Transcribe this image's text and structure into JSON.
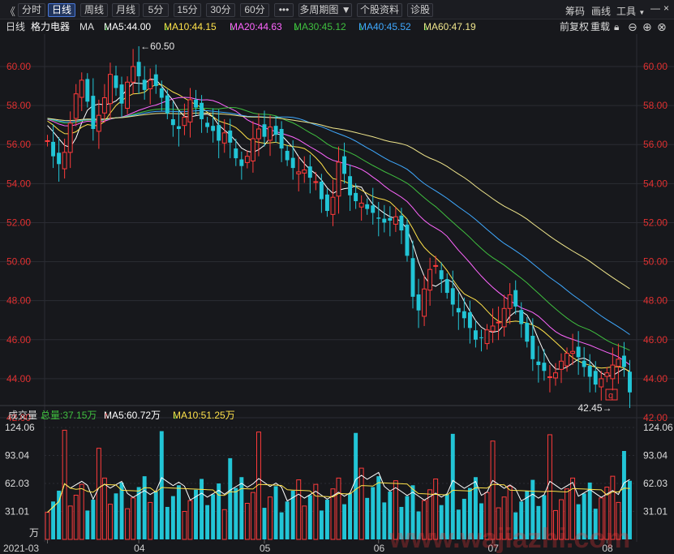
{
  "toolbar": {
    "back_glyph": "《",
    "tabs": [
      "分时",
      "日线",
      "周线",
      "月线",
      "5分",
      "15分",
      "30分",
      "60分",
      "•••",
      "多周期图",
      "个股资料",
      "诊股"
    ],
    "active_tab": 1,
    "right_items": [
      "筹码",
      "画线",
      "工具"
    ]
  },
  "info": {
    "period": "日线",
    "stock_name": "格力电器",
    "ma_label": "MA",
    "ma_items": [
      {
        "text": "MA5:44.00",
        "color": "#ffffff",
        "arrow": "down"
      },
      {
        "text": "MA10:44.15",
        "color": "#ffe24a",
        "arrow": "down"
      },
      {
        "text": "MA20:44.63",
        "color": "#ff66ff",
        "arrow": "down"
      },
      {
        "text": "MA30:45.12",
        "color": "#3fbf3f",
        "arrow": "down"
      },
      {
        "text": "MA40:45.52",
        "color": "#3fa9ff",
        "arrow": "down"
      },
      {
        "text": "MA60:47.19",
        "color": "#f0e68c",
        "arrow": "down"
      }
    ],
    "adjust": "前复权",
    "overlay": "重载"
  },
  "price_axis": {
    "ticks": [
      "60.00",
      "58.00",
      "56.00",
      "54.00",
      "52.00",
      "50.00",
      "48.00",
      "46.00",
      "44.00",
      "42.00"
    ],
    "high_label": "60.50",
    "low_label": "42.45",
    "marker": "q"
  },
  "volume": {
    "label": "成交量",
    "total": "总量:37.15万",
    "ma5": "MA5:60.72万",
    "ma10": "MA10:51.25万",
    "ticks": [
      "124.06",
      "93.04",
      "62.03",
      "31.01"
    ],
    "unit": "万"
  },
  "x_axis": {
    "labels": [
      "2021-03",
      "04",
      "05",
      "06",
      "07",
      "08"
    ]
  },
  "watermark": "www.wajiazhi.com",
  "chart_data": {
    "type": "candlestick",
    "period": "daily",
    "price_range": [
      42.0,
      60.5
    ],
    "volume_range_wan": [
      0,
      124.06
    ],
    "closes": [
      56.2,
      55.4,
      55.0,
      55.6,
      57.1,
      58.6,
      59.3,
      58.2,
      56.8,
      57.5,
      58.4,
      59.6,
      58.9,
      58.1,
      59.2,
      60.0,
      59.5,
      58.8,
      59.3,
      59.0,
      58.4,
      57.6,
      57.0,
      56.8,
      57.4,
      58.3,
      57.9,
      57.3,
      56.9,
      56.7,
      56.2,
      56.6,
      56.1,
      55.3,
      54.9,
      55.4,
      56.3,
      56.8,
      56.4,
      56.9,
      56.5,
      55.8,
      55.2,
      54.8,
      54.6,
      54.7,
      54.3,
      54.1,
      53.2,
      52.6,
      53.3,
      55.1,
      54.5,
      53.4,
      53.1,
      53.0,
      52.7,
      52.5,
      52.2,
      52.0,
      52.1,
      52.3,
      51.6,
      50.3,
      48.2,
      47.5,
      48.6,
      49.6,
      49.8,
      49.1,
      48.4,
      47.8,
      47.4,
      47.1,
      46.6,
      46.0,
      46.1,
      46.5,
      46.7,
      46.9,
      47.6,
      48.3,
      47.7,
      46.8,
      45.9,
      45.0,
      44.7,
      44.4,
      44.1,
      44.3,
      44.9,
      45.3,
      45.4,
      45.1,
      44.6,
      44.1,
      43.7,
      44.0,
      44.3,
      44.7,
      45.0,
      44.6,
      43.3
    ],
    "series": [
      {
        "name": "MA5",
        "last": 44.0
      },
      {
        "name": "MA10",
        "last": 44.15
      },
      {
        "name": "MA20",
        "last": 44.63
      },
      {
        "name": "MA30",
        "last": 45.12
      },
      {
        "name": "MA40",
        "last": 45.52
      },
      {
        "name": "MA60",
        "last": 47.19
      }
    ],
    "volume_summary": {
      "total_wan": 37.15,
      "ma5_wan": 60.72,
      "ma10_wan": 51.25
    }
  }
}
